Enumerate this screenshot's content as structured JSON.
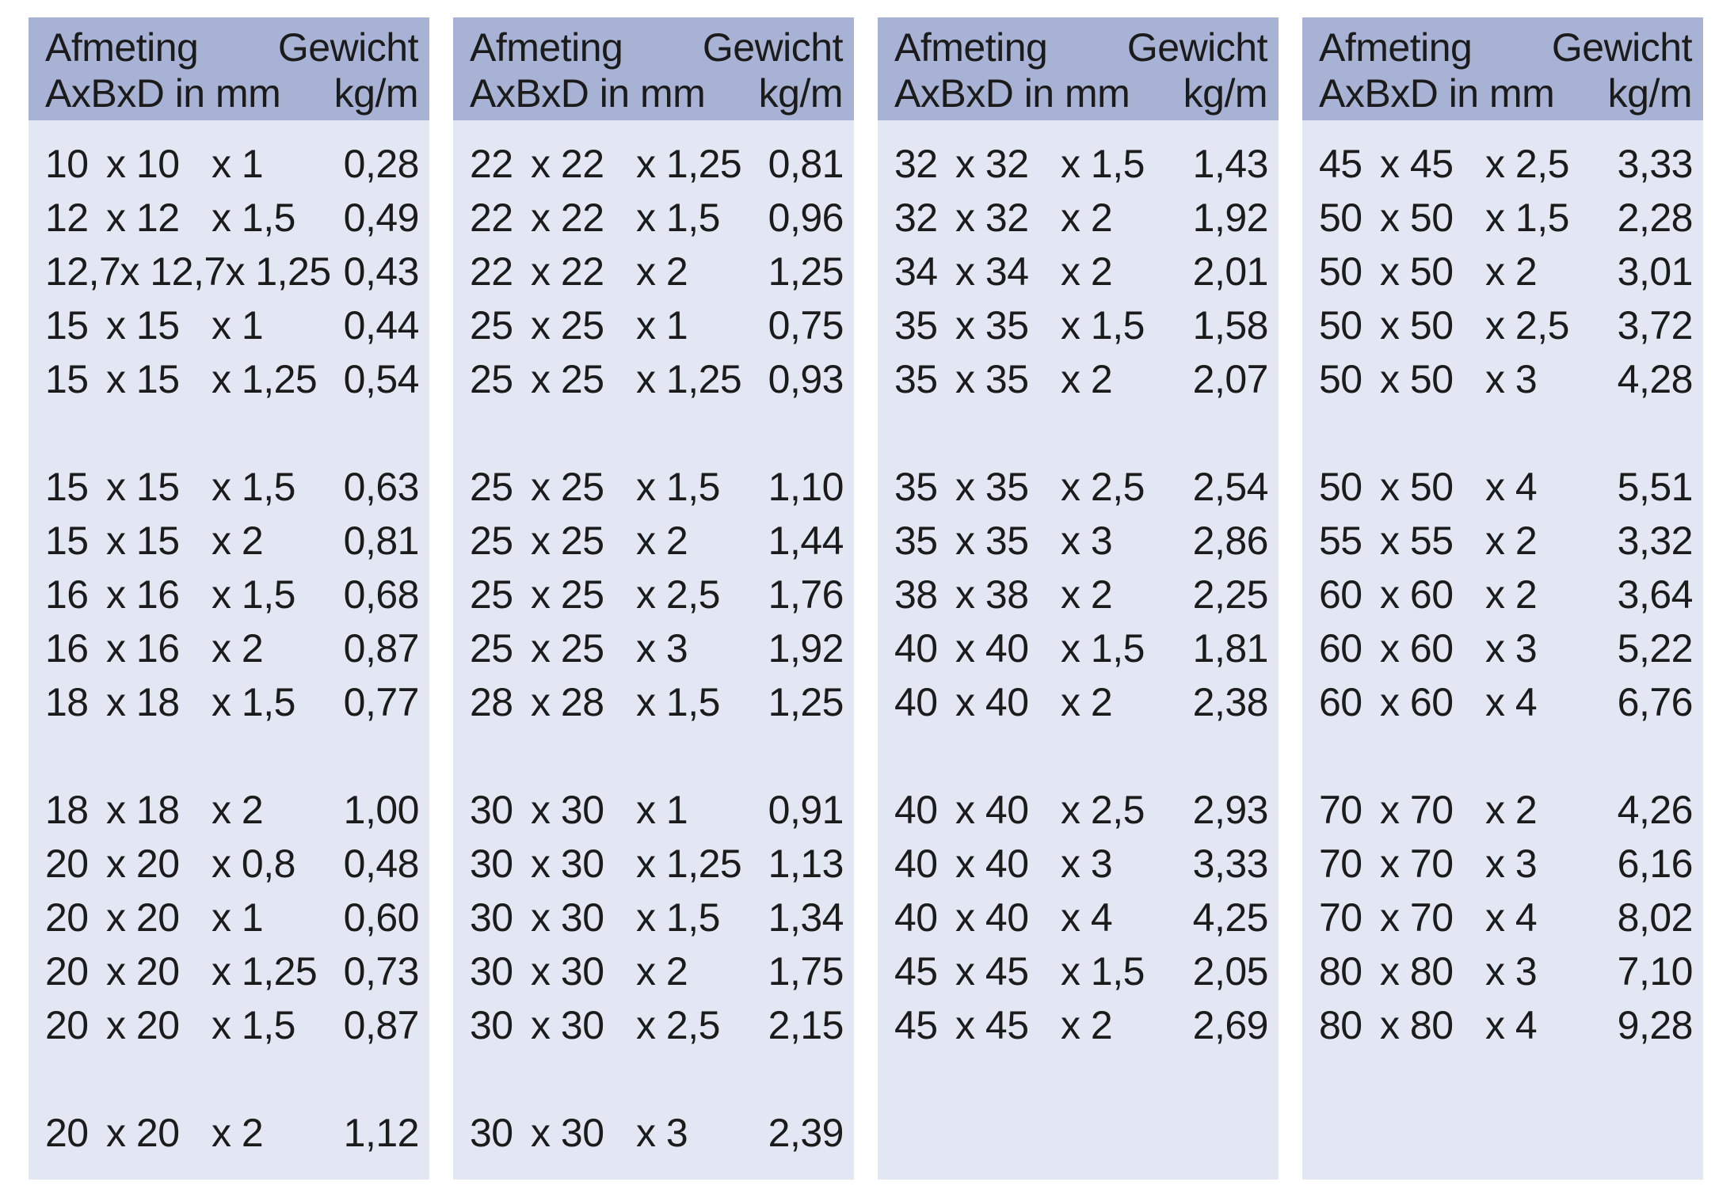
{
  "colors": {
    "page_background": "#ffffff",
    "header_background": "#a8b2d5",
    "body_background": "#e3e7f3",
    "text": "#1b1b1b"
  },
  "header": {
    "dimension_label": "Afmeting",
    "dimension_unit": "AxBxD in mm",
    "weight_label": "Gewicht",
    "weight_unit": "kg/m"
  },
  "panels": [
    {
      "groups": [
        [
          {
            "a": "10",
            "b": "x 10",
            "d": "x 1",
            "w": "0,28"
          },
          {
            "a": "12",
            "b": "x 12",
            "d": "x 1,5",
            "w": "0,49"
          },
          {
            "a": "12,7",
            "b": "x 12,7",
            "d": "x 1,25",
            "w": "0,43"
          },
          {
            "a": "15",
            "b": "x 15",
            "d": "x 1",
            "w": "0,44"
          },
          {
            "a": "15",
            "b": "x 15",
            "d": "x 1,25",
            "w": "0,54"
          }
        ],
        [
          {
            "a": "15",
            "b": "x 15",
            "d": "x 1,5",
            "w": "0,63"
          },
          {
            "a": "15",
            "b": "x 15",
            "d": "x 2",
            "w": "0,81"
          },
          {
            "a": "16",
            "b": "x 16",
            "d": "x 1,5",
            "w": "0,68"
          },
          {
            "a": "16",
            "b": "x 16",
            "d": "x 2",
            "w": "0,87"
          },
          {
            "a": "18",
            "b": "x 18",
            "d": "x 1,5",
            "w": "0,77"
          }
        ],
        [
          {
            "a": "18",
            "b": "x 18",
            "d": "x 2",
            "w": "1,00"
          },
          {
            "a": "20",
            "b": "x 20",
            "d": "x 0,8",
            "w": "0,48"
          },
          {
            "a": "20",
            "b": "x 20",
            "d": "x 1",
            "w": "0,60"
          },
          {
            "a": "20",
            "b": "x 20",
            "d": "x 1,25",
            "w": "0,73"
          },
          {
            "a": "20",
            "b": "x 20",
            "d": "x 1,5",
            "w": "0,87"
          }
        ],
        [
          {
            "a": "20",
            "b": "x 20",
            "d": "x 2",
            "w": "1,12"
          }
        ]
      ]
    },
    {
      "groups": [
        [
          {
            "a": "22",
            "b": "x 22",
            "d": "x 1,25",
            "w": "0,81"
          },
          {
            "a": "22",
            "b": "x 22",
            "d": "x 1,5",
            "w": "0,96"
          },
          {
            "a": "22",
            "b": "x 22",
            "d": "x 2",
            "w": "1,25"
          },
          {
            "a": "25",
            "b": "x 25",
            "d": "x 1",
            "w": "0,75"
          },
          {
            "a": "25",
            "b": "x 25",
            "d": "x 1,25",
            "w": "0,93"
          }
        ],
        [
          {
            "a": "25",
            "b": "x 25",
            "d": "x 1,5",
            "w": "1,10"
          },
          {
            "a": "25",
            "b": "x 25",
            "d": "x 2",
            "w": "1,44"
          },
          {
            "a": "25",
            "b": "x 25",
            "d": "x 2,5",
            "w": "1,76"
          },
          {
            "a": "25",
            "b": "x 25",
            "d": "x 3",
            "w": "1,92"
          },
          {
            "a": "28",
            "b": "x 28",
            "d": "x 1,5",
            "w": "1,25"
          }
        ],
        [
          {
            "a": "30",
            "b": "x 30",
            "d": "x 1",
            "w": "0,91"
          },
          {
            "a": "30",
            "b": "x 30",
            "d": "x 1,25",
            "w": "1,13"
          },
          {
            "a": "30",
            "b": "x 30",
            "d": "x 1,5",
            "w": "1,34"
          },
          {
            "a": "30",
            "b": "x 30",
            "d": "x 2",
            "w": "1,75"
          },
          {
            "a": "30",
            "b": "x 30",
            "d": "x 2,5",
            "w": "2,15"
          }
        ],
        [
          {
            "a": "30",
            "b": "x 30",
            "d": "x 3",
            "w": "2,39"
          }
        ]
      ]
    },
    {
      "groups": [
        [
          {
            "a": "32",
            "b": "x 32",
            "d": "x 1,5",
            "w": "1,43"
          },
          {
            "a": "32",
            "b": "x 32",
            "d": "x 2",
            "w": "1,92"
          },
          {
            "a": "34",
            "b": "x 34",
            "d": "x 2",
            "w": "2,01"
          },
          {
            "a": "35",
            "b": "x 35",
            "d": "x 1,5",
            "w": "1,58"
          },
          {
            "a": "35",
            "b": "x 35",
            "d": "x 2",
            "w": "2,07"
          }
        ],
        [
          {
            "a": "35",
            "b": "x 35",
            "d": "x 2,5",
            "w": "2,54"
          },
          {
            "a": "35",
            "b": "x 35",
            "d": "x 3",
            "w": "2,86"
          },
          {
            "a": "38",
            "b": "x 38",
            "d": "x 2",
            "w": "2,25"
          },
          {
            "a": "40",
            "b": "x 40",
            "d": "x 1,5",
            "w": "1,81"
          },
          {
            "a": "40",
            "b": "x 40",
            "d": "x 2",
            "w": "2,38"
          }
        ],
        [
          {
            "a": "40",
            "b": "x 40",
            "d": "x 2,5",
            "w": "2,93"
          },
          {
            "a": "40",
            "b": "x 40",
            "d": "x 3",
            "w": "3,33"
          },
          {
            "a": "40",
            "b": "x 40",
            "d": "x 4",
            "w": "4,25"
          },
          {
            "a": "45",
            "b": "x 45",
            "d": "x 1,5",
            "w": "2,05"
          },
          {
            "a": "45",
            "b": "x 45",
            "d": "x 2",
            "w": "2,69"
          }
        ],
        []
      ]
    },
    {
      "groups": [
        [
          {
            "a": "45",
            "b": "x 45",
            "d": "x 2,5",
            "w": "3,33"
          },
          {
            "a": "50",
            "b": "x 50",
            "d": "x 1,5",
            "w": "2,28"
          },
          {
            "a": "50",
            "b": "x 50",
            "d": "x 2",
            "w": "3,01"
          },
          {
            "a": "50",
            "b": "x 50",
            "d": "x 2,5",
            "w": "3,72"
          },
          {
            "a": "50",
            "b": "x 50",
            "d": "x 3",
            "w": "4,28"
          }
        ],
        [
          {
            "a": "50",
            "b": "x 50",
            "d": "x 4",
            "w": "5,51"
          },
          {
            "a": "55",
            "b": "x 55",
            "d": "x 2",
            "w": "3,32"
          },
          {
            "a": "60",
            "b": "x 60",
            "d": "x 2",
            "w": "3,64"
          },
          {
            "a": "60",
            "b": "x 60",
            "d": "x 3",
            "w": "5,22"
          },
          {
            "a": "60",
            "b": "x 60",
            "d": "x 4",
            "w": "6,76"
          }
        ],
        [
          {
            "a": "70",
            "b": "x 70",
            "d": "x 2",
            "w": "4,26"
          },
          {
            "a": "70",
            "b": "x 70",
            "d": "x 3",
            "w": "6,16"
          },
          {
            "a": "70",
            "b": "x 70",
            "d": "x 4",
            "w": "8,02"
          },
          {
            "a": "80",
            "b": "x 80",
            "d": "x 3",
            "w": "7,10"
          },
          {
            "a": "80",
            "b": "x 80",
            "d": "x 4",
            "w": "9,28"
          }
        ],
        []
      ]
    }
  ]
}
